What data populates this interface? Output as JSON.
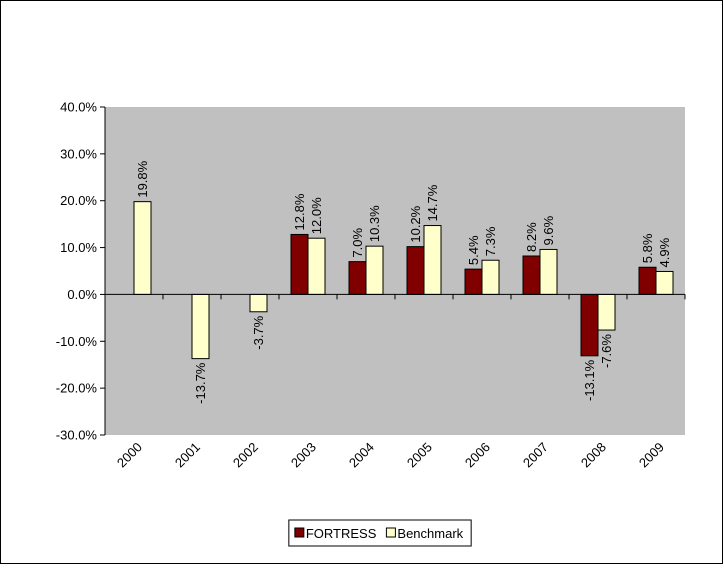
{
  "chart_data": {
    "type": "bar",
    "categories": [
      "2000",
      "2001",
      "2002",
      "2003",
      "2004",
      "2005",
      "2006",
      "2007",
      "2008",
      "2009"
    ],
    "series": [
      {
        "name": "FORTRESS",
        "color": "#800000",
        "values": [
          null,
          null,
          null,
          12.8,
          7.0,
          10.2,
          5.4,
          8.2,
          -13.1,
          5.8
        ],
        "value_labels": [
          null,
          null,
          null,
          "12.8%",
          "7.0%",
          "10.2%",
          "5.4%",
          "8.2%",
          "-13.1%",
          "5.8%"
        ]
      },
      {
        "name": "Benchmark",
        "color": "#FFFFCC",
        "values": [
          19.8,
          -13.7,
          -3.7,
          12.0,
          10.3,
          14.7,
          7.3,
          9.6,
          -7.6,
          4.9
        ],
        "value_labels": [
          "19.8%",
          "-13.7%",
          "-3.7%",
          "12.0%",
          "10.3%",
          "14.7%",
          "7.3%",
          "9.6%",
          "-7.6%",
          "4.9%"
        ]
      }
    ],
    "ylim": [
      -30,
      40
    ],
    "yticks": [
      {
        "value": -30,
        "label": "-30.0%"
      },
      {
        "value": -20,
        "label": "-20.0%"
      },
      {
        "value": -10,
        "label": "-10.0%"
      },
      {
        "value": 0,
        "label": "0.0%"
      },
      {
        "value": 10,
        "label": "10.0%"
      },
      {
        "value": 20,
        "label": "20.0%"
      },
      {
        "value": 30,
        "label": "30.0%"
      },
      {
        "value": 40,
        "label": "40.0%"
      }
    ],
    "plot_background": "#C0C0C0",
    "legend": "bottom"
  }
}
